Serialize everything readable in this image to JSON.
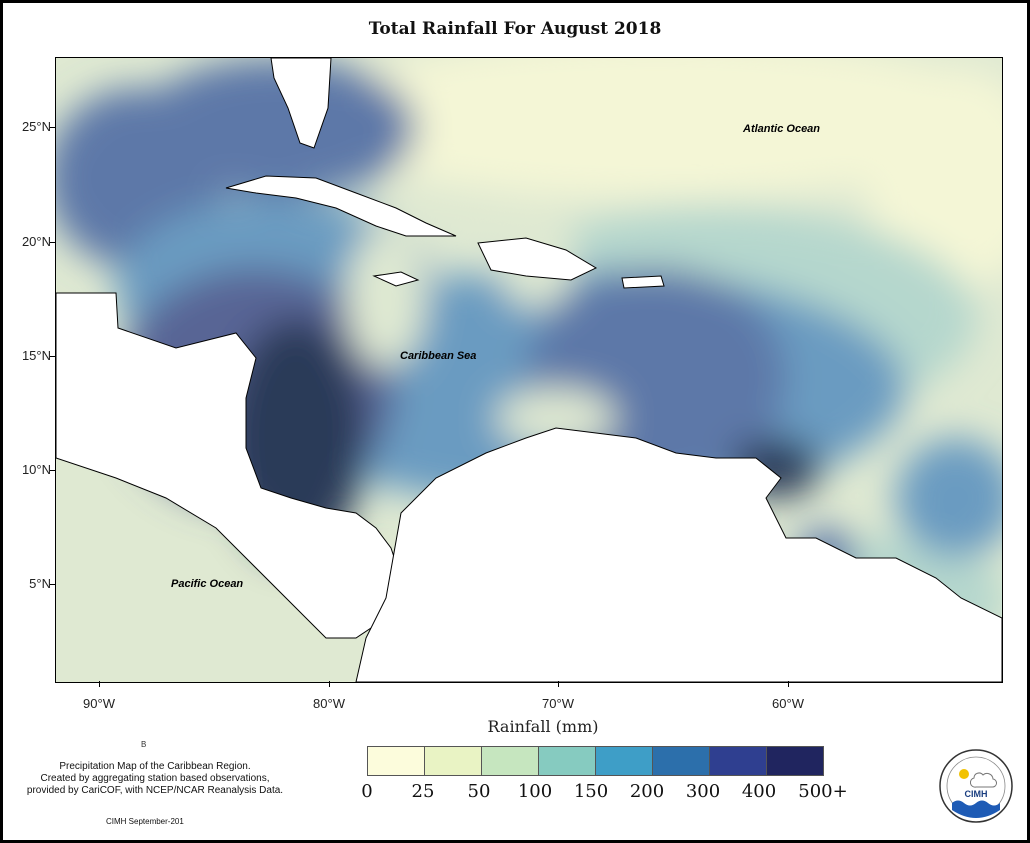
{
  "title": "Total Rainfall For August 2018",
  "lat_labels": [
    "25°N",
    "20°N",
    "15°N",
    "10°N",
    "5°N"
  ],
  "lon_labels": [
    "90°W",
    "80°W",
    "70°W",
    "60°W"
  ],
  "places": {
    "atlantic": "Atlantic Ocean",
    "caribbean": "Caribbean Sea",
    "pacific": "Pacific Ocean"
  },
  "legend": {
    "title": "Rainfall (mm)",
    "labels": [
      "0",
      "25",
      "50",
      "100",
      "150",
      "200",
      "300",
      "400",
      "500+"
    ],
    "colors": [
      "#fcfcdc",
      "#e9f3c4",
      "#c6e6bf",
      "#86cbc0",
      "#3e9ec7",
      "#2c6fab",
      "#2f3f90",
      "#20255f"
    ]
  },
  "marker": "B",
  "description": [
    "Precipitation Map of the Caribbean Region.",
    "Created by aggregating station based observations,",
    "provided by CariCOF, with NCEP/NCAR Reanalysis Data."
  ],
  "credit": "CIMH September-201",
  "logo_text": "CIMH",
  "colors": {
    "c1": "#f4f6d6",
    "c2": "#dfe9d2",
    "c3": "#b5d7cd",
    "c4": "#8fbccb",
    "c5": "#6a9bc1",
    "c6": "#5d78a8",
    "c7": "#586595",
    "c8": "#2c3a58",
    "land": "#ffffff"
  }
}
